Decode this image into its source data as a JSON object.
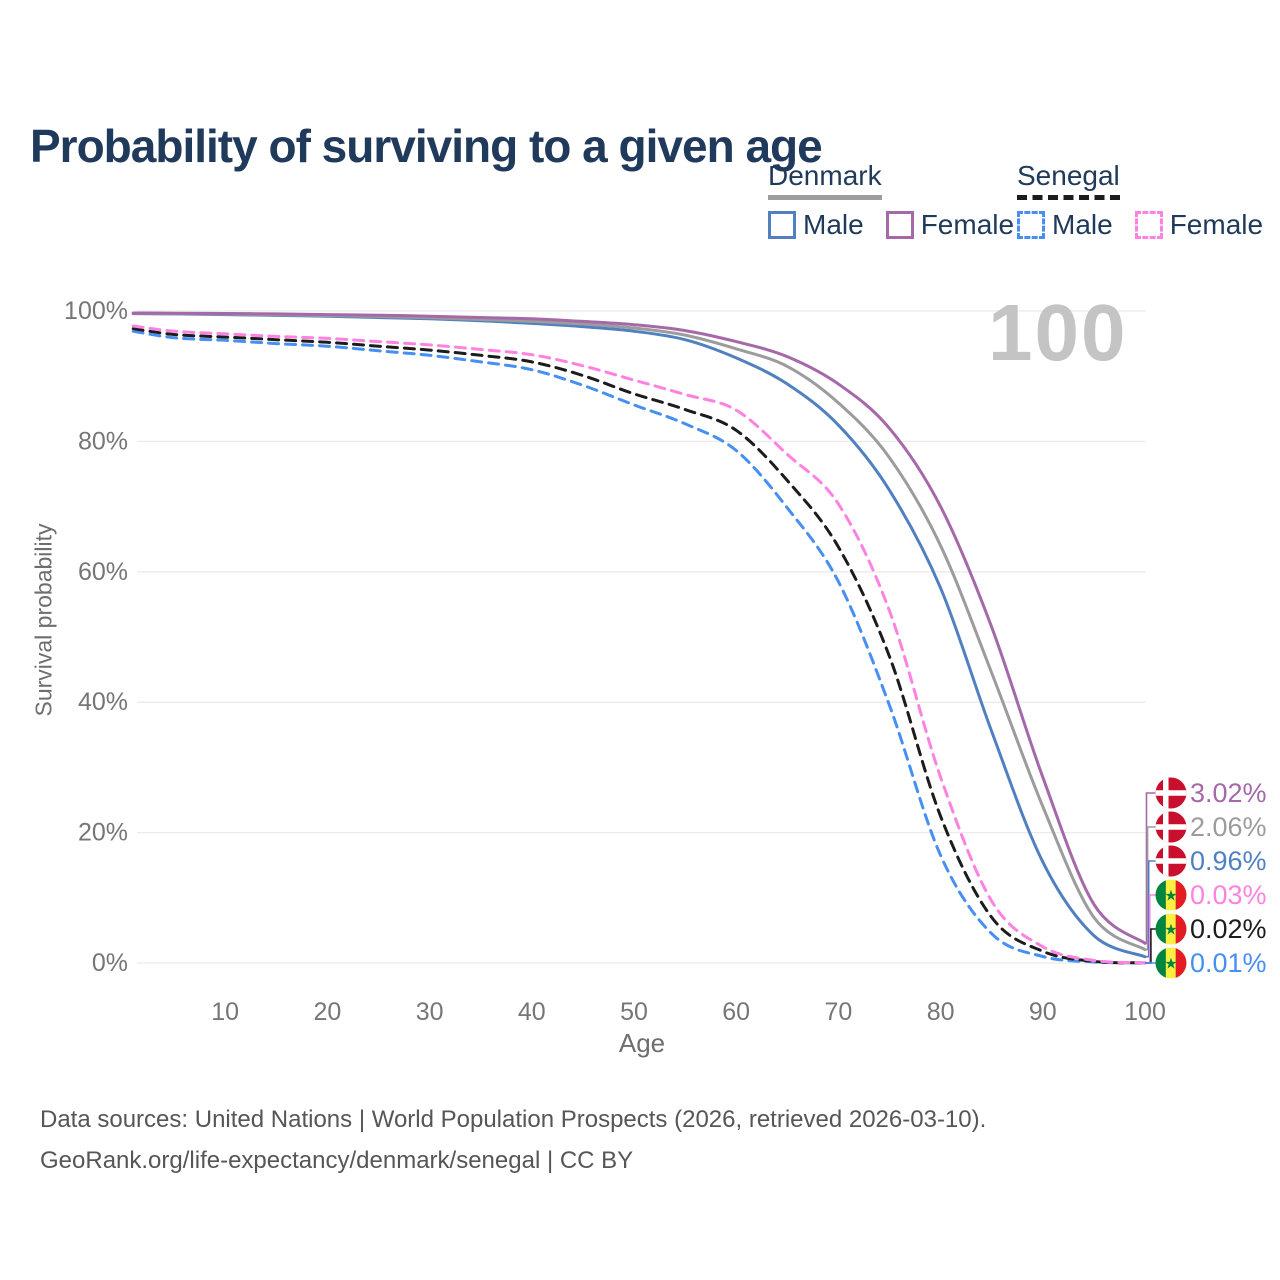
{
  "title": "Probability of surviving to a given age",
  "legend": {
    "groups": [
      {
        "label": "Denmark",
        "underline_style": "solid",
        "underline_color": "#9e9e9e",
        "items": [
          {
            "label": "Male",
            "swatch_color": "#5180c1",
            "swatch_style": "solid"
          },
          {
            "label": "Female",
            "swatch_color": "#a568a8",
            "swatch_style": "solid"
          }
        ]
      },
      {
        "label": "Senegal",
        "underline_style": "dashed",
        "underline_color": "#1c1c1c",
        "items": [
          {
            "label": "Male",
            "swatch_color": "#478ff2",
            "swatch_style": "dashed"
          },
          {
            "label": "Female",
            "swatch_color": "#ff82e3",
            "swatch_style": "dashed"
          }
        ]
      }
    ]
  },
  "chart_data": {
    "type": "line",
    "title": "Probability of surviving to a given age",
    "xlabel": "Age",
    "ylabel": "Survival probability",
    "x_range": [
      0,
      100
    ],
    "y_range": [
      0,
      100
    ],
    "grid": "horizontal-only",
    "watermark": "100",
    "y_ticks": [
      {
        "value": 100,
        "label": "100%"
      },
      {
        "value": 80,
        "label": "80%"
      },
      {
        "value": 60,
        "label": "60%"
      },
      {
        "value": 40,
        "label": "40%"
      },
      {
        "value": 20,
        "label": "20%"
      },
      {
        "value": 0,
        "label": "0%"
      }
    ],
    "x_ticks": [
      {
        "value": 10,
        "label": "10"
      },
      {
        "value": 20,
        "label": "20"
      },
      {
        "value": 30,
        "label": "30"
      },
      {
        "value": 40,
        "label": "40"
      },
      {
        "value": 50,
        "label": "50"
      },
      {
        "value": 60,
        "label": "60"
      },
      {
        "value": 70,
        "label": "70"
      },
      {
        "value": 80,
        "label": "80"
      },
      {
        "value": 90,
        "label": "90"
      },
      {
        "value": 100,
        "label": "100"
      }
    ],
    "ages": [
      1,
      5,
      10,
      15,
      20,
      25,
      30,
      35,
      40,
      45,
      50,
      55,
      60,
      65,
      70,
      75,
      80,
      85,
      90,
      95,
      100
    ],
    "series": [
      {
        "name": "Denmark Female",
        "country": "Denmark",
        "sex": "Female",
        "line_style": "solid",
        "color": "#a568a8",
        "flag": "denmark",
        "end_label": "3.02%",
        "values": [
          99.7,
          99.67,
          99.62,
          99.55,
          99.45,
          99.35,
          99.2,
          99.0,
          98.8,
          98.4,
          97.9,
          97.0,
          95.3,
          93.0,
          88.8,
          82.0,
          70.0,
          51.5,
          28.5,
          9.0,
          3.02
        ]
      },
      {
        "name": "Denmark Total",
        "country": "Denmark",
        "sex": "Total",
        "line_style": "solid",
        "color": "#9c9c9c",
        "flag": "denmark",
        "end_label": "2.06%",
        "values": [
          99.65,
          99.6,
          99.52,
          99.42,
          99.3,
          99.15,
          98.95,
          98.7,
          98.4,
          98.0,
          97.4,
          96.3,
          94.2,
          91.5,
          85.9,
          77.5,
          64.0,
          44.5,
          24.0,
          7.0,
          2.06
        ]
      },
      {
        "name": "Denmark Male",
        "country": "Denmark",
        "sex": "Male",
        "line_style": "solid",
        "color": "#5180c1",
        "flag": "denmark",
        "end_label": "0.96%",
        "values": [
          99.6,
          99.55,
          99.45,
          99.33,
          99.2,
          99.0,
          98.8,
          98.5,
          98.1,
          97.6,
          96.9,
          95.6,
          92.8,
          88.8,
          82.5,
          72.5,
          57.5,
          35.5,
          15.5,
          4.2,
          0.96
        ]
      },
      {
        "name": "Senegal Female",
        "country": "Senegal",
        "sex": "Female",
        "line_style": "dashed",
        "color": "#ff82e3",
        "flag": "senegal",
        "end_label": "0.03%",
        "values": [
          97.7,
          96.9,
          96.5,
          96.1,
          95.8,
          95.3,
          94.8,
          94.1,
          93.3,
          91.6,
          89.4,
          87.2,
          84.8,
          78.0,
          70.4,
          54.0,
          28.5,
          9.5,
          2.5,
          0.4,
          0.03
        ]
      },
      {
        "name": "Senegal Total",
        "country": "Senegal",
        "sex": "Total",
        "line_style": "dashed",
        "color": "#1c1c1c",
        "flag": "senegal",
        "end_label": "0.02%",
        "values": [
          97.3,
          96.4,
          96.0,
          95.6,
          95.2,
          94.6,
          94.0,
          93.2,
          92.2,
          90.1,
          87.3,
          84.9,
          81.7,
          74.0,
          63.8,
          47.0,
          22.5,
          7.0,
          1.8,
          0.25,
          0.02
        ]
      },
      {
        "name": "Senegal Male",
        "country": "Senegal",
        "sex": "Male",
        "line_style": "dashed",
        "color": "#478ff2",
        "flag": "senegal",
        "end_label": "0.01%",
        "values": [
          96.9,
          95.9,
          95.5,
          95.0,
          94.6,
          93.9,
          93.2,
          92.2,
          91.0,
          88.6,
          85.6,
          82.7,
          78.6,
          69.8,
          58.5,
          39.5,
          16.5,
          4.5,
          1.0,
          0.15,
          0.01
        ]
      }
    ],
    "flag_colors": {
      "denmark_red": "#c8102e",
      "denmark_cross": "#ffffff",
      "senegal_green": "#00853f",
      "senegal_yellow": "#fdef42",
      "senegal_red": "#e31b23",
      "senegal_star": "#00853f"
    }
  },
  "footer": {
    "line1": "Data sources: United Nations | World Population Prospects (2026, retrieved 2026-03-10).",
    "line2": "GeoRank.org/life-expectancy/denmark/senegal | CC BY"
  }
}
